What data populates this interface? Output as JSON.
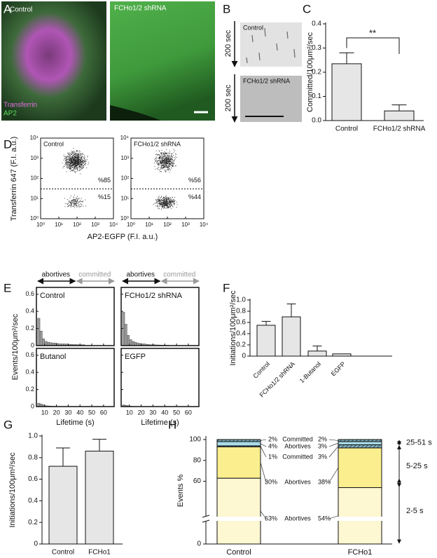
{
  "figure": {
    "A": {
      "label": "A",
      "left": "Control",
      "right": "FCHo1/2 shRNA",
      "stain1": "Transferrin",
      "stain2": "AP2"
    },
    "B": {
      "label": "B",
      "top": "Control",
      "bottom": "FCHo1/2 shRNA",
      "time": "200 sec"
    }
  },
  "chart_data": [
    {
      "panel": "C",
      "type": "bar",
      "ylabel": "Committed/100μm²/sec",
      "categories": [
        "Control",
        "FCHo1/2 shRNA"
      ],
      "values": [
        0.235,
        0.04
      ],
      "errors": [
        0.045,
        0.025
      ],
      "color": "#e6e6e6",
      "ylim": [
        0,
        0.4
      ],
      "yticks": [
        {
          "value": 0,
          "label": "0.0"
        },
        0.1,
        0.2,
        0.3,
        0.4
      ],
      "annotation": "**"
    },
    {
      "panel": "D",
      "type": "scatter",
      "log": true,
      "xlabel": "AP2-EGFP (F.I. a.u.)",
      "ylabel": "Transferrin 647 (F.I. a.u.)",
      "xlim": [
        1,
        10000
      ],
      "ylim": [
        1,
        10000
      ],
      "threshold": 30,
      "xticks": [
        {
          "value": 1,
          "label": "10⁰"
        },
        {
          "value": 10,
          "label": "10¹"
        },
        {
          "value": 100,
          "label": "10²"
        },
        {
          "value": 1000,
          "label": "10³"
        },
        {
          "value": 10000,
          "label": "10⁴"
        }
      ],
      "yticks": [
        {
          "value": 1,
          "label": "10⁰"
        },
        {
          "value": 10,
          "label": "10¹"
        },
        {
          "value": 100,
          "label": "10²"
        },
        {
          "value": 1000,
          "label": "10³"
        },
        {
          "value": 10000,
          "label": "10⁴"
        }
      ],
      "plots": [
        {
          "title": "Control",
          "values": [
            85,
            15
          ],
          "value_labels": [
            "%85",
            "%15"
          ]
        },
        {
          "title": "FCHo1/2 shRNA",
          "values": [
            56,
            44
          ],
          "value_labels": [
            "%56",
            "%44"
          ]
        }
      ]
    },
    {
      "panel": "E",
      "type": "histogram",
      "ylabel": "Events/100μm²/sec",
      "xlabel": "Lifetime (s)",
      "arrows": [
        "abortives",
        "committed"
      ],
      "color": "#9a9a9a",
      "xlim": [
        3,
        69
      ],
      "ylim": [
        0,
        0.68
      ],
      "xticks": [
        10,
        20,
        30,
        40,
        50,
        60
      ],
      "yticks": [
        0,
        0.2,
        0.4,
        0.6
      ],
      "bins": [
        4,
        6,
        8,
        10,
        12,
        14,
        16,
        18,
        20,
        22,
        24,
        26,
        28,
        30,
        32,
        34,
        36,
        38,
        40,
        42,
        44
      ],
      "series": [
        {
          "name": "Control",
          "values": [
            0.32,
            0.17,
            0.08,
            0.05,
            0.04,
            0.035,
            0.03,
            0.03,
            0.025,
            0.02,
            0.02,
            0.02,
            0.018,
            0.015,
            0.015,
            0.012,
            0.012,
            0.01,
            0.01,
            0.01
          ]
        },
        {
          "name": "FCHo1/2 shRNA",
          "values": [
            0.39,
            0.25,
            0.12,
            0.07,
            0.05,
            0.04,
            0.03,
            0.025,
            0.02,
            0.02,
            0.015,
            0.012,
            0.01,
            0.01,
            0.008,
            0.007,
            0.006,
            0.005,
            0.005,
            0.004
          ]
        },
        {
          "name": "Butanol",
          "values": [
            0.04,
            0.03,
            0.02,
            0.01,
            0.008,
            0.006,
            0.004,
            0.003,
            0.002,
            0.002,
            0.001,
            0.001,
            0.001,
            0.001,
            0.001,
            0,
            0,
            0,
            0,
            0
          ]
        },
        {
          "name": "EGFP",
          "values": [
            0.02,
            0.015,
            0.01,
            0.005,
            0.003,
            0.002,
            0.001,
            0.001,
            0,
            0,
            0,
            0,
            0,
            0,
            0,
            0,
            0,
            0,
            0,
            0
          ]
        }
      ]
    },
    {
      "panel": "F",
      "type": "bar",
      "ylabel": "Initiations/100μm²/sec",
      "categories": [
        "Control",
        "FCHo1/2 shRNA",
        "1-Butanol",
        "EGFP"
      ],
      "values": [
        0.55,
        0.7,
        0.09,
        0.04
      ],
      "errors": [
        0.07,
        0.23,
        0.09,
        0
      ],
      "color": "#e6e6e6",
      "ylim": [
        0,
        1
      ],
      "yticks": [
        0,
        0.2,
        0.4,
        0.6,
        0.8,
        {
          "value": 1,
          "label": "1.0"
        }
      ]
    },
    {
      "panel": "G",
      "type": "bar",
      "ylabel": "Initiations/100μm²/sec",
      "categories": [
        "Control",
        "FCHo1"
      ],
      "values": [
        0.72,
        0.86
      ],
      "errors": [
        0.17,
        0.11
      ],
      "color": "#e6e6e6",
      "ylim": [
        0,
        1
      ],
      "yticks": [
        0,
        0.2,
        0.4,
        0.6,
        0.8,
        {
          "value": 1,
          "label": "1.0"
        }
      ]
    },
    {
      "panel": "H",
      "type": "stacked",
      "ylabel": "Events %",
      "categories": [
        "Control",
        "FCHo1"
      ],
      "ylim": [
        0,
        100
      ],
      "yticks": [
        0,
        60,
        80,
        100
      ],
      "series": [
        {
          "name": "Abortives",
          "values": [
            63,
            54
          ],
          "value_labels": [
            "63%",
            "54%"
          ],
          "color": "#fdf7d2"
        },
        {
          "name": "Abortives",
          "values": [
            30,
            38
          ],
          "value_labels": [
            "30%",
            "38%"
          ],
          "color": "#fbee8e"
        },
        {
          "name": "Committed",
          "values": [
            1,
            3
          ],
          "value_labels": [
            "1%",
            "3%"
          ],
          "color": "#fbee8e",
          "hatched": true
        },
        {
          "name": "Abortives",
          "values": [
            4,
            3
          ],
          "value_labels": [
            "4%",
            "3%"
          ],
          "color": "#a9dce8"
        },
        {
          "name": "Committed",
          "values": [
            2,
            2
          ],
          "value_labels": [
            "2%",
            "2%"
          ],
          "color": "#a9dce8",
          "hatched": true
        }
      ],
      "brackets": [
        {
          "label": "2-5 s",
          "series": [
            0
          ]
        },
        {
          "label": "5-25 s",
          "series": [
            1,
            2
          ]
        },
        {
          "label": "25-51 s",
          "series": [
            3,
            4
          ]
        }
      ]
    }
  ]
}
